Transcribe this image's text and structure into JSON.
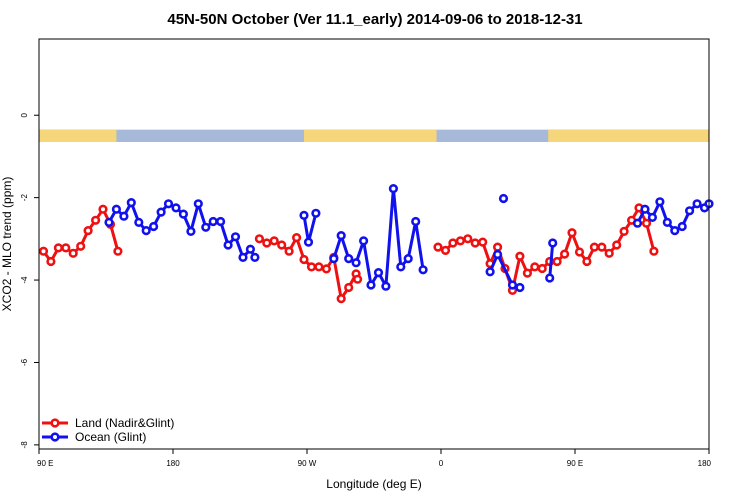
{
  "chart_data": {
    "type": "line",
    "title": "45N-50N October (Ver 11.1_early)   2014-09-06 to 2018-12-31",
    "xlabel": "Longitude (deg E)",
    "ylabel": "XCO2 - MLO trend (ppm)",
    "x_ticks": [
      {
        "value": 90,
        "label": "90 E"
      },
      {
        "value": 180,
        "label": "180"
      },
      {
        "value": 270,
        "label": "90 W"
      },
      {
        "value": 360,
        "label": "0"
      },
      {
        "value": 450,
        "label": "90 E"
      },
      {
        "value": 540,
        "label": "180"
      }
    ],
    "y_ticks": [
      {
        "value": 0,
        "label": "0"
      },
      {
        "value": -2,
        "label": "-2"
      },
      {
        "value": -4,
        "label": "-4"
      },
      {
        "value": -6,
        "label": "-6"
      },
      {
        "value": -8,
        "label": "-8"
      }
    ],
    "xlim": [
      90,
      540
    ],
    "ylim": [
      -8.1,
      1.85
    ],
    "x_unit": "longitude, continuous scale repeating after 360",
    "grid": false,
    "legend_position": "bottom-left",
    "land_ocean_strip": {
      "y_range": [
        -0.65,
        -0.35
      ],
      "land_color": "#f5d67a",
      "ocean_color": "#a7b9d8",
      "land_segments": [
        [
          90,
          142
        ],
        [
          268,
          357
        ],
        [
          432,
          560
        ]
      ]
    },
    "series": [
      {
        "name": "Land (Nadir&Glint)",
        "color": "#ee1111",
        "segments": [
          [
            [
              93,
              -3.3
            ],
            [
              98,
              -3.55
            ],
            [
              103,
              -3.22
            ],
            [
              108,
              -3.22
            ],
            [
              113,
              -3.35
            ],
            [
              118,
              -3.18
            ],
            [
              123,
              -2.8
            ],
            [
              128,
              -2.55
            ],
            [
              133,
              -2.28
            ],
            [
              138,
              -2.65
            ],
            [
              143,
              -3.3
            ]
          ],
          [
            [
              238,
              -3.0
            ],
            [
              243,
              -3.1
            ],
            [
              248,
              -3.05
            ],
            [
              253,
              -3.15
            ],
            [
              258,
              -3.3
            ],
            [
              263,
              -2.97
            ],
            [
              268,
              -3.5
            ],
            [
              273,
              -3.68
            ],
            [
              278,
              -3.68
            ],
            [
              283,
              -3.73
            ],
            [
              288,
              -3.45
            ],
            [
              293,
              -4.45
            ],
            [
              298,
              -4.18
            ],
            [
              303,
              -3.85
            ],
            [
              304,
              -3.98
            ]
          ],
          [
            [
              358,
              -3.2
            ],
            [
              363,
              -3.28
            ],
            [
              368,
              -3.1
            ],
            [
              373,
              -3.05
            ],
            [
              378,
              -3.0
            ],
            [
              383,
              -3.1
            ],
            [
              388,
              -3.08
            ],
            [
              393,
              -3.6
            ],
            [
              398,
              -3.2
            ],
            [
              403,
              -3.72
            ],
            [
              408,
              -4.25
            ],
            [
              413,
              -3.42
            ],
            [
              418,
              -3.83
            ],
            [
              423,
              -3.68
            ],
            [
              428,
              -3.72
            ],
            [
              433,
              -3.55
            ],
            [
              438,
              -3.55
            ],
            [
              443,
              -3.37
            ],
            [
              448,
              -2.85
            ],
            [
              453,
              -3.32
            ],
            [
              458,
              -3.55
            ],
            [
              463,
              -3.2
            ],
            [
              468,
              -3.2
            ],
            [
              473,
              -3.35
            ],
            [
              478,
              -3.15
            ],
            [
              483,
              -2.82
            ],
            [
              488,
              -2.55
            ],
            [
              493,
              -2.25
            ],
            [
              498,
              -2.62
            ],
            [
              503,
              -3.3
            ]
          ]
        ]
      },
      {
        "name": "Ocean (Glint)",
        "color": "#1111ee",
        "segments": [
          [
            [
              137,
              -2.6
            ],
            [
              142,
              -2.28
            ],
            [
              147,
              -2.45
            ],
            [
              152,
              -2.12
            ],
            [
              157,
              -2.6
            ],
            [
              162,
              -2.8
            ],
            [
              167,
              -2.7
            ],
            [
              172,
              -2.35
            ],
            [
              177,
              -2.15
            ],
            [
              182,
              -2.25
            ],
            [
              187,
              -2.4
            ],
            [
              192,
              -2.82
            ],
            [
              197,
              -2.15
            ],
            [
              202,
              -2.72
            ],
            [
              207,
              -2.58
            ],
            [
              212,
              -2.58
            ],
            [
              217,
              -3.15
            ],
            [
              222,
              -2.95
            ],
            [
              227,
              -3.45
            ],
            [
              232,
              -3.25
            ],
            [
              235,
              -3.45
            ]
          ],
          [
            [
              268,
              -2.43
            ],
            [
              271,
              -3.08
            ],
            [
              276,
              -2.38
            ]
          ],
          [
            [
              288,
              -3.48
            ],
            [
              293,
              -2.92
            ],
            [
              298,
              -3.48
            ],
            [
              303,
              -3.58
            ],
            [
              308,
              -3.05
            ],
            [
              313,
              -4.12
            ],
            [
              318,
              -3.82
            ],
            [
              323,
              -4.15
            ],
            [
              328,
              -1.78
            ],
            [
              333,
              -3.68
            ],
            [
              338,
              -3.48
            ],
            [
              343,
              -2.58
            ],
            [
              348,
              -3.75
            ]
          ],
          [
            [
              402,
              -2.02
            ]
          ],
          [
            [
              393,
              -3.8
            ],
            [
              398,
              -3.38
            ],
            [
              408,
              -4.12
            ],
            [
              413,
              -4.18
            ]
          ],
          [
            [
              433,
              -3.95
            ],
            [
              435,
              -3.1
            ]
          ],
          [
            [
              492,
              -2.62
            ],
            [
              497,
              -2.28
            ],
            [
              502,
              -2.48
            ],
            [
              507,
              -2.1
            ],
            [
              512,
              -2.6
            ],
            [
              517,
              -2.8
            ],
            [
              522,
              -2.7
            ],
            [
              527,
              -2.32
            ],
            [
              532,
              -2.15
            ],
            [
              537,
              -2.25
            ],
            [
              540,
              -2.15
            ]
          ]
        ]
      }
    ]
  }
}
